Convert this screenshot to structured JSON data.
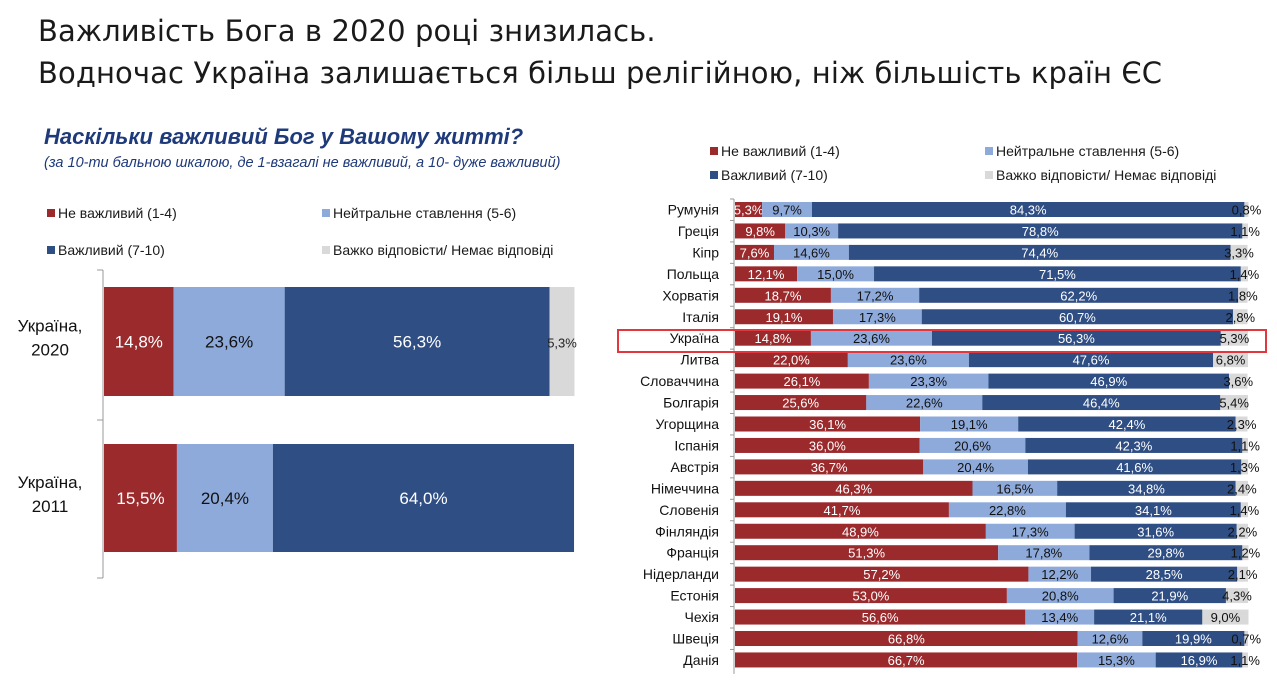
{
  "title": {
    "line1": "Важливість Бога в 2020 році знизилась.",
    "line2": "Водночас Україна залишається більш релігійною, ніж більшість країн ЄС"
  },
  "question": "Наскільки важливий Бог у Вашому житті?",
  "scale_note": "(за 10-ти бальною шкалою, де 1-взагалі не важливий, а 10- дуже важливий)",
  "legend": [
    {
      "label": "Не важливий (1-4)",
      "color": "#9b2a2d"
    },
    {
      "label": "Нейтральне ставлення (5-6)",
      "color": "#8eaadb"
    },
    {
      "label": "Важливий (7-10)",
      "color": "#2e4e84"
    },
    {
      "label": "Важко відповісти/ Немає відповіді",
      "color": "#d9d9d9"
    }
  ],
  "chart_data": [
    {
      "type": "bar",
      "orientation": "horizontal",
      "stacked": true,
      "percent": true,
      "legend_position": "top",
      "categories": [
        "Україна,\n2020",
        "Україна,\n2011"
      ],
      "series": [
        {
          "name": "Не важливий (1-4)",
          "values": [
            14.8,
            15.5
          ],
          "labels": [
            "14,8%",
            "15,5%"
          ],
          "color": "#9b2a2d"
        },
        {
          "name": "Нейтральне ставлення (5-6)",
          "values": [
            23.6,
            20.4
          ],
          "labels": [
            "23,6%",
            "20,4%"
          ],
          "color": "#8eaadb"
        },
        {
          "name": "Важливий (7-10)",
          "values": [
            56.3,
            64.0
          ],
          "labels": [
            "56,3%",
            "64,0%"
          ],
          "color": "#2e4e84"
        },
        {
          "name": "Важко відповісти/ Немає відповіді",
          "values": [
            5.3,
            0
          ],
          "labels": [
            "5,3%",
            ""
          ],
          "color": "#d9d9d9"
        }
      ]
    },
    {
      "type": "bar",
      "orientation": "horizontal",
      "stacked": true,
      "percent": true,
      "legend_position": "top",
      "highlight": "Україна",
      "categories": [
        "Румунія",
        "Греція",
        "Кіпр",
        "Польща",
        "Хорватія",
        "Італія",
        "Україна",
        "Литва",
        "Словаччина",
        "Болгарія",
        "Угорщина",
        "Іспанія",
        "Австрія",
        "Німеччина",
        "Словенія",
        "Фінляндія",
        "Франція",
        "Нідерланди",
        "Естонія",
        "Чехія",
        "Швеція",
        "Данія"
      ],
      "series": [
        {
          "name": "Не важливий (1-4)",
          "color": "#9b2a2d",
          "values": [
            5.3,
            9.8,
            7.6,
            12.1,
            18.7,
            19.1,
            14.8,
            22.0,
            26.1,
            25.6,
            36.1,
            36.0,
            36.7,
            46.3,
            41.7,
            48.9,
            51.3,
            57.2,
            53.0,
            56.6,
            66.8,
            66.7
          ],
          "labels": [
            "5,3%",
            "9,8%",
            "7,6%",
            "12,1%",
            "18,7%",
            "19,1%",
            "14,8%",
            "22,0%",
            "26,1%",
            "25,6%",
            "36,1%",
            "36,0%",
            "36,7%",
            "46,3%",
            "41,7%",
            "48,9%",
            "51,3%",
            "57,2%",
            "53,0%",
            "56,6%",
            "66,8%",
            "66,7%"
          ]
        },
        {
          "name": "Нейтральне ставлення (5-6)",
          "color": "#8eaadb",
          "values": [
            9.7,
            10.3,
            14.6,
            15.0,
            17.2,
            17.3,
            23.6,
            23.6,
            23.3,
            22.6,
            19.1,
            20.6,
            20.4,
            16.5,
            22.8,
            17.3,
            17.8,
            12.2,
            20.8,
            13.4,
            12.6,
            15.3
          ],
          "labels": [
            "9,7%",
            "10,3%",
            "14,6%",
            "15,0%",
            "17,2%",
            "17,3%",
            "23,6%",
            "23,6%",
            "23,3%",
            "22,6%",
            "19,1%",
            "20,6%",
            "20,4%",
            "16,5%",
            "22,8%",
            "17,3%",
            "17,8%",
            "12,2%",
            "20,8%",
            "13,4%",
            "12,6%",
            "15,3%"
          ]
        },
        {
          "name": "Важливий (7-10)",
          "color": "#2e4e84",
          "values": [
            84.3,
            78.8,
            74.4,
            71.5,
            62.2,
            60.7,
            56.3,
            47.6,
            46.9,
            46.4,
            42.4,
            42.3,
            41.6,
            34.8,
            34.1,
            31.6,
            29.8,
            28.5,
            21.9,
            21.1,
            19.9,
            16.9
          ],
          "labels": [
            "84,3%",
            "78,8%",
            "74,4%",
            "71,5%",
            "62,2%",
            "60,7%",
            "56,3%",
            "47,6%",
            "46,9%",
            "46,4%",
            "42,4%",
            "42,3%",
            "41,6%",
            "34,8%",
            "34,1%",
            "31,6%",
            "29,8%",
            "28,5%",
            "21,9%",
            "21,1%",
            "19,9%",
            "16,9%"
          ]
        },
        {
          "name": "Важко відповісти/ Немає відповіді",
          "color": "#d9d9d9",
          "values": [
            0.8,
            1.1,
            3.3,
            1.4,
            1.8,
            2.8,
            5.3,
            6.8,
            3.6,
            5.4,
            2.3,
            1.1,
            1.3,
            2.4,
            1.4,
            2.2,
            1.2,
            2.1,
            4.3,
            9.0,
            0.7,
            1.1
          ],
          "labels": [
            "0,8%",
            "1,1%",
            "3,3%",
            "1,4%",
            "1,8%",
            "2,8%",
            "5,3%",
            "6,8%",
            "3,6%",
            "5,4%",
            "2,3%",
            "1,1%",
            "1,3%",
            "2,4%",
            "1,4%",
            "2,2%",
            "1,2%",
            "2,1%",
            "4,3%",
            "9,0%",
            "0,7%",
            "1,1%"
          ]
        }
      ]
    }
  ]
}
